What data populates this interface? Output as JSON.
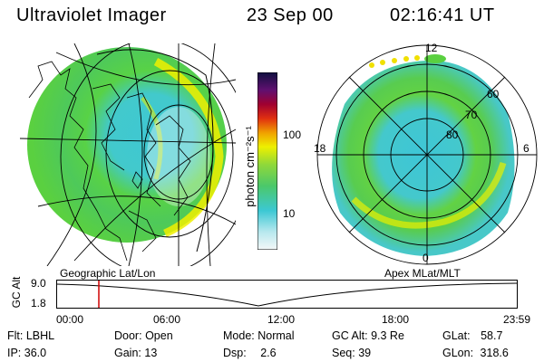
{
  "header": {
    "instrument": "Ultraviolet Imager",
    "date": "23 Sep 00",
    "time": "02:16:41 UT"
  },
  "colorbar": {
    "unit_label": "photon cm⁻²s⁻¹",
    "ticks": [
      "100",
      "10"
    ]
  },
  "left_image": {
    "caption": "Geographic Lat/Lon"
  },
  "right_image": {
    "caption": "Apex MLat/MLT",
    "mlt_labels": [
      "12",
      "18",
      "6",
      "0"
    ],
    "lat_labels": [
      "60",
      "70",
      "80"
    ]
  },
  "altitude_plot": {
    "ylabel": "GC Alt",
    "y_ticks": [
      "9.0",
      "1.8"
    ],
    "x_ticks": [
      "00:00",
      "06:00",
      "12:00",
      "18:00",
      "23:59"
    ],
    "marker_time": "02:16:41"
  },
  "status": {
    "flt_label": "Flt:",
    "flt_value": "LBHL",
    "ip_label": "IP:",
    "ip_value": "36.0",
    "door_label": "Door:",
    "door_value": "Open",
    "gain_label": "Gain:",
    "gain_value": "13",
    "mode_label": "Mode:",
    "mode_value": "Normal",
    "dsp_label": "Dsp:",
    "dsp_value": "2.6",
    "gcalt_label": "GC Alt:",
    "gcalt_value": "9.3 Re",
    "seq_label": "Seq:",
    "seq_value": "39",
    "glat_label": "GLat:",
    "glat_value": "58.7",
    "glon_label": "GLon:",
    "glon_value": "318.6"
  },
  "colors": {
    "background": "#ffffff",
    "marker": "#d00000",
    "green": "#5fd23a",
    "cyan": "#38c8d8",
    "yellow": "#f0f000"
  }
}
